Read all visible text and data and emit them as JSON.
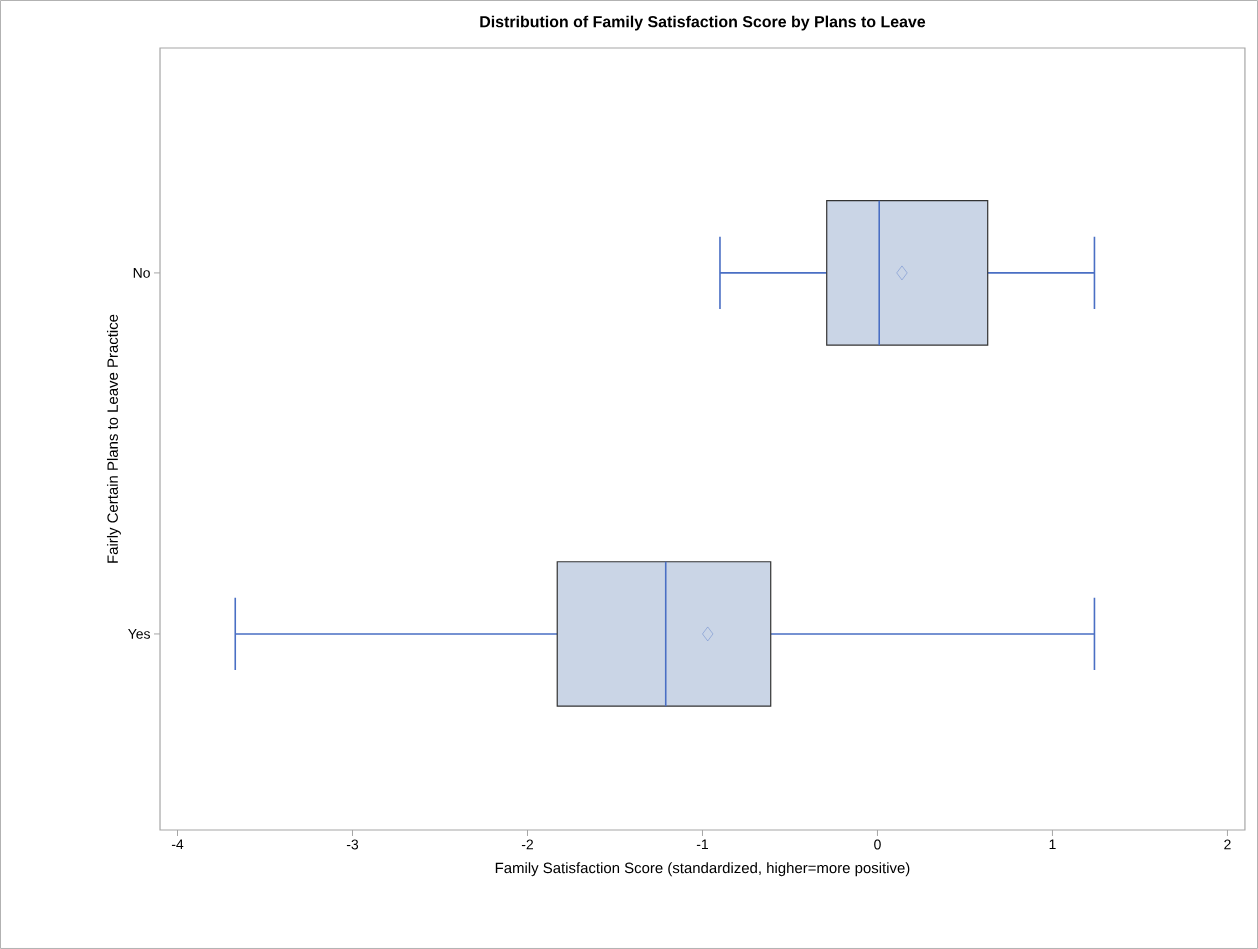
{
  "chart_data": {
    "type": "box",
    "orientation": "horizontal",
    "title": "Distribution of Family Satisfaction Score by Plans to Leave",
    "xlabel": "Family Satisfaction Score (standardized, higher=more positive)",
    "ylabel": "Fairly Certain Plans to Leave Practice",
    "categories": [
      "No",
      "Yes"
    ],
    "color": "#cad5e6",
    "marker": "diamond",
    "boxes": [
      {
        "low": -0.9,
        "q1": -0.29,
        "median": 0.01,
        "q3": 0.63,
        "high": 1.24,
        "mean": 0.14
      },
      {
        "low": -3.67,
        "q1": -1.83,
        "median": -1.21,
        "q3": -0.61,
        "high": 1.24,
        "mean": -0.97
      }
    ],
    "xlim": [
      -4.1,
      2.1
    ],
    "xticks": [
      -4,
      -3,
      -2,
      -1,
      0,
      1,
      2
    ]
  }
}
